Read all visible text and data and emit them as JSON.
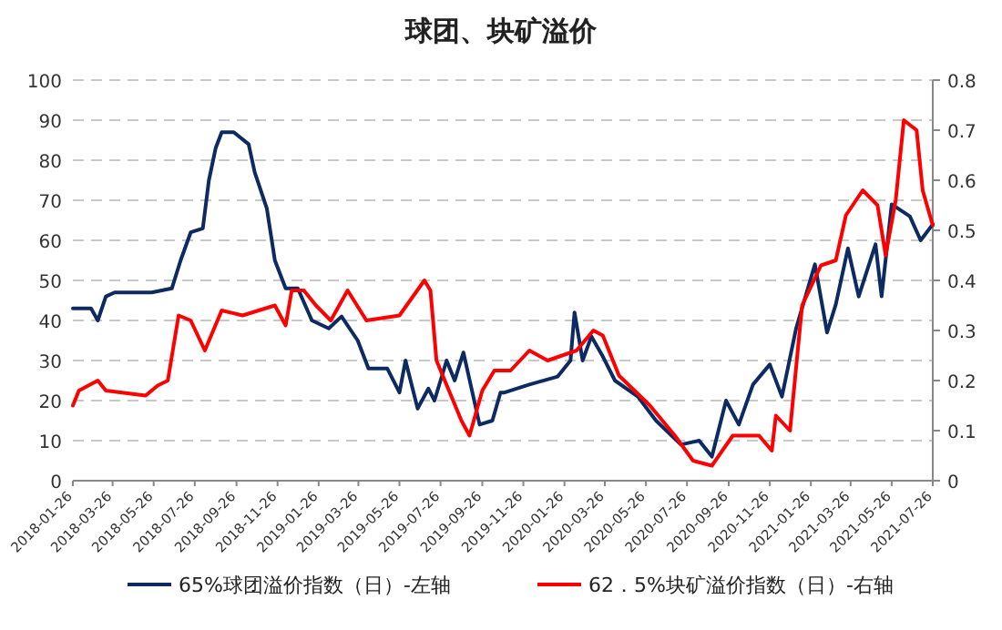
{
  "chart_data": {
    "type": "line",
    "title": "球团、块矿溢价",
    "xlim": [
      "2018-01-26",
      "2021-07-26"
    ],
    "xticks": [
      "2018-01-26",
      "2018-03-26",
      "2018-05-26",
      "2018-07-26",
      "2018-09-26",
      "2018-11-26",
      "2019-01-26",
      "2019-03-26",
      "2019-05-26",
      "2019-07-26",
      "2019-09-26",
      "2019-11-26",
      "2020-01-26",
      "2020-03-26",
      "2020-05-26",
      "2020-07-26",
      "2020-09-26",
      "2020-11-26",
      "2021-01-26",
      "2021-03-26",
      "2021-05-26",
      "2021-07-26"
    ],
    "ylim": [
      0,
      100
    ],
    "yticks": [
      0,
      10,
      20,
      30,
      40,
      50,
      60,
      70,
      80,
      90,
      100
    ],
    "y2lim": [
      0,
      0.8
    ],
    "y2ticks": [
      0,
      0.1,
      0.2,
      0.3,
      0.4,
      0.5,
      0.6,
      0.7,
      0.8
    ],
    "grid": "y",
    "legend": "bottom",
    "series": [
      {
        "name": "65%球团溢价指数（日）-左轴",
        "color": "#0d2a63",
        "x": [
          "2018-01-26",
          "2018-02-22",
          "2018-03-04",
          "2018-03-16",
          "2018-03-29",
          "2018-05-23",
          "2018-06-22",
          "2018-07-05",
          "2018-07-20",
          "2018-08-07",
          "2018-08-16",
          "2018-08-26",
          "2018-09-04",
          "2018-09-22",
          "2018-10-14",
          "2018-10-23",
          "2018-11-10",
          "2018-11-22",
          "2018-12-08",
          "2018-12-26",
          "2019-01-16",
          "2019-02-10",
          "2019-03-01",
          "2019-03-25",
          "2019-04-10",
          "2019-05-08",
          "2019-05-26",
          "2019-06-04",
          "2019-06-22",
          "2019-07-08",
          "2019-07-17",
          "2019-08-04",
          "2019-08-16",
          "2019-08-29",
          "2019-09-22",
          "2019-10-11",
          "2019-10-23",
          "2019-10-29",
          "2019-12-05",
          "2020-01-16",
          "2020-02-04",
          "2020-02-10",
          "2020-02-22",
          "2020-03-06",
          "2020-03-23",
          "2020-04-10",
          "2020-05-14",
          "2020-06-10",
          "2020-07-17",
          "2020-08-13",
          "2020-09-01",
          "2020-09-22",
          "2020-10-11",
          "2020-11-01",
          "2020-11-26",
          "2020-12-14",
          "2021-01-04",
          "2021-02-01",
          "2021-02-19",
          "2021-03-04",
          "2021-03-22",
          "2021-04-07",
          "2021-05-02",
          "2021-05-11",
          "2021-05-26",
          "2021-06-22",
          "2021-07-08",
          "2021-07-26"
        ],
        "values": [
          43,
          43,
          40,
          46,
          47,
          47,
          48,
          55,
          62,
          63,
          75,
          83,
          87,
          87,
          84,
          77,
          68,
          55,
          48,
          48,
          40,
          38,
          41,
          35,
          28,
          28,
          22,
          30,
          18,
          23,
          20,
          30,
          25,
          32,
          14,
          15,
          22,
          22,
          24,
          26,
          30,
          42,
          30,
          36,
          31,
          25,
          21,
          15,
          9,
          10,
          6,
          20,
          14,
          24,
          29,
          21,
          38,
          54,
          37,
          44,
          58,
          46,
          59,
          46,
          69,
          66,
          60,
          64
        ]
      },
      {
        "name": "62．5%块矿溢价指数（日）-右轴",
        "color": "#ff0000",
        "axis": "y2",
        "x": [
          "2018-01-26",
          "2018-02-04",
          "2018-03-04",
          "2018-03-16",
          "2018-05-14",
          "2018-06-01",
          "2018-06-16",
          "2018-07-02",
          "2018-07-20",
          "2018-08-10",
          "2018-09-04",
          "2018-10-05",
          "2018-11-22",
          "2018-12-08",
          "2018-12-17",
          "2019-01-04",
          "2019-01-22",
          "2019-02-13",
          "2019-03-10",
          "2019-04-07",
          "2019-05-26",
          "2019-07-02",
          "2019-07-11",
          "2019-07-20",
          "2019-08-26",
          "2019-09-07",
          "2019-09-26",
          "2019-10-14",
          "2019-11-07",
          "2019-12-05",
          "2020-01-01",
          "2020-02-13",
          "2020-03-09",
          "2020-03-23",
          "2020-04-16",
          "2020-06-01",
          "2020-07-08",
          "2020-08-04",
          "2020-09-01",
          "2020-10-02",
          "2020-11-10",
          "2020-11-29",
          "2020-12-05",
          "2020-12-26",
          "2021-01-13",
          "2021-02-10",
          "2021-03-04",
          "2021-03-19",
          "2021-04-13",
          "2021-05-05",
          "2021-05-17",
          "2021-06-01",
          "2021-06-13",
          "2021-07-02",
          "2021-07-11",
          "2021-07-26"
        ],
        "values": [
          0.15,
          0.18,
          0.2,
          0.18,
          0.17,
          0.19,
          0.2,
          0.33,
          0.32,
          0.26,
          0.34,
          0.33,
          0.35,
          0.31,
          0.38,
          0.38,
          0.35,
          0.32,
          0.38,
          0.32,
          0.33,
          0.4,
          0.38,
          0.24,
          0.12,
          0.09,
          0.18,
          0.22,
          0.22,
          0.26,
          0.24,
          0.26,
          0.3,
          0.29,
          0.21,
          0.15,
          0.09,
          0.04,
          0.03,
          0.09,
          0.09,
          0.06,
          0.13,
          0.1,
          0.35,
          0.43,
          0.44,
          0.53,
          0.58,
          0.55,
          0.45,
          0.56,
          0.72,
          0.7,
          0.58,
          0.51
        ]
      }
    ]
  }
}
